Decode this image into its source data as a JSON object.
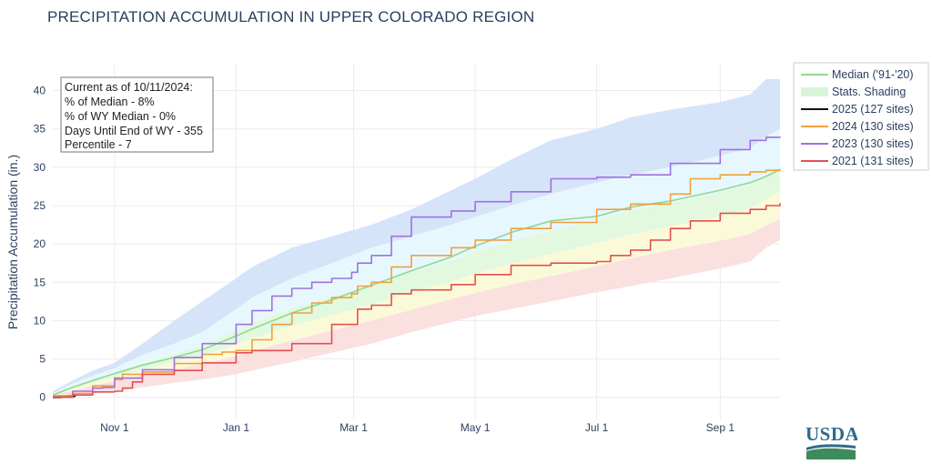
{
  "title": "PRECIPITATION ACCUMULATION IN UPPER COLORADO REGION",
  "logo_text": "USDA",
  "info_box": [
    "Current as of 10/11/2024:",
    "% of Median - 8%",
    "% of WY Median - 0%",
    "Days Until End of WY - 355",
    "Percentile - 7"
  ],
  "chart_data": {
    "type": "line",
    "title": "PRECIPITATION ACCUMULATION IN UPPER COLORADO REGION",
    "xlabel": "",
    "ylabel": "Precipitation Accumulation (in.)",
    "x_unit": "days since Oct 1",
    "xlim": [
      0,
      365
    ],
    "ylim": [
      -3,
      43.5
    ],
    "x_ticks": [
      {
        "label": "Nov 1",
        "day": 31
      },
      {
        "label": "Jan 1",
        "day": 92
      },
      {
        "label": "Mar 1",
        "day": 151
      },
      {
        "label": "May 1",
        "day": 212
      },
      {
        "label": "Jul 1",
        "day": 273
      },
      {
        "label": "Sep 1",
        "day": 335
      }
    ],
    "y_ticks": [
      0,
      5,
      10,
      15,
      20,
      25,
      30,
      35,
      40
    ],
    "grid": true,
    "legend_position": "top-right",
    "bands": [
      {
        "name": "max-90",
        "color": "#d6e4fa",
        "x": [
          0,
          10,
          20,
          31,
          45,
          61,
          75,
          92,
          100,
          120,
          140,
          160,
          180,
          200,
          212,
          230,
          250,
          273,
          290,
          310,
          335,
          350,
          358,
          365
        ],
        "lower": [
          0.5,
          1.8,
          2.8,
          3.8,
          5.5,
          7,
          8.5,
          11.5,
          13,
          15.5,
          17.5,
          19.5,
          21,
          22.5,
          23.5,
          25,
          26.5,
          28,
          29,
          30,
          31.5,
          32.5,
          34,
          35
        ],
        "upper": [
          0.8,
          2.2,
          3.5,
          4.5,
          7,
          10,
          12.5,
          15.5,
          17,
          19.5,
          21,
          22.5,
          24.5,
          27,
          28.5,
          31,
          33.5,
          35,
          36.5,
          37.5,
          38.5,
          39.5,
          41.5,
          41.5
        ]
      },
      {
        "name": "70-90",
        "color": "#e6f8fd",
        "x": [
          0,
          10,
          20,
          31,
          45,
          61,
          75,
          92,
          100,
          120,
          140,
          160,
          180,
          200,
          212,
          230,
          250,
          273,
          290,
          310,
          335,
          350,
          358,
          365
        ],
        "lower": [
          0.4,
          1.5,
          2.3,
          3.1,
          4.4,
          5.6,
          6.7,
          8.7,
          9.7,
          11.6,
          13.1,
          14.8,
          16.3,
          17.8,
          19,
          20.3,
          21.7,
          23.1,
          24.3,
          25.3,
          26.7,
          27.7,
          29,
          30
        ],
        "upper": [
          0.5,
          1.8,
          2.8,
          3.8,
          5.5,
          7,
          8.5,
          11.5,
          13,
          15.5,
          17.5,
          19.5,
          21,
          22.5,
          23.5,
          25,
          26.5,
          28,
          29,
          30,
          31.5,
          32.5,
          34,
          35
        ]
      },
      {
        "name": "50-70",
        "color": "#e2f8df",
        "x": [
          0,
          10,
          20,
          31,
          45,
          61,
          75,
          92,
          100,
          120,
          140,
          160,
          180,
          200,
          212,
          230,
          250,
          273,
          290,
          310,
          335,
          350,
          358,
          365
        ],
        "lower": [
          0.3,
          1.2,
          1.9,
          2.6,
          3.6,
          4.6,
          5.4,
          6.9,
          7.6,
          9.3,
          10.7,
          12.1,
          13.7,
          15.1,
          16.1,
          17.4,
          18.7,
          20.1,
          21.2,
          22.3,
          23.6,
          24.6,
          25.8,
          26.8
        ],
        "upper": [
          0.4,
          1.5,
          2.3,
          3.1,
          4.4,
          5.6,
          6.7,
          8.7,
          9.7,
          11.6,
          13.1,
          14.8,
          16.3,
          17.8,
          19,
          20.3,
          21.7,
          23.1,
          24.3,
          25.3,
          26.7,
          27.7,
          29,
          30
        ]
      },
      {
        "name": "30-50",
        "color": "#fbfad8",
        "x": [
          0,
          10,
          20,
          31,
          45,
          61,
          75,
          92,
          100,
          120,
          140,
          160,
          180,
          200,
          212,
          230,
          250,
          273,
          290,
          310,
          335,
          350,
          358,
          365
        ],
        "lower": [
          0.2,
          0.9,
          1.5,
          2.1,
          2.9,
          3.7,
          4.3,
          5.4,
          6,
          7.4,
          8.7,
          10,
          11.4,
          12.8,
          13.6,
          14.7,
          15.8,
          17.1,
          18.1,
          19.2,
          20.4,
          21.3,
          22.4,
          23.2
        ],
        "upper": [
          0.3,
          1.2,
          1.9,
          2.6,
          3.6,
          4.6,
          5.4,
          6.9,
          7.6,
          9.3,
          10.7,
          12.1,
          13.7,
          15.1,
          16.1,
          17.4,
          18.7,
          20.1,
          21.2,
          22.3,
          23.6,
          24.6,
          25.8,
          26.8
        ]
      },
      {
        "name": "min-30",
        "color": "#fbe0e0",
        "x": [
          0,
          10,
          20,
          31,
          45,
          61,
          75,
          92,
          100,
          120,
          140,
          160,
          180,
          200,
          212,
          230,
          250,
          273,
          290,
          310,
          335,
          350,
          358,
          365
        ],
        "lower": [
          0,
          0.2,
          0.5,
          0.8,
          1.3,
          1.9,
          2.3,
          3,
          3.5,
          4.6,
          5.8,
          7,
          8.5,
          9.8,
          10.6,
          11.5,
          12.5,
          13.7,
          14.5,
          15.5,
          16.8,
          17.7,
          19.5,
          20.5
        ],
        "upper": [
          0.2,
          0.9,
          1.5,
          2.1,
          2.9,
          3.7,
          4.3,
          5.4,
          6,
          7.4,
          8.7,
          10,
          11.4,
          12.8,
          13.6,
          14.7,
          15.8,
          17.1,
          18.1,
          19.2,
          20.4,
          21.3,
          22.4,
          23.2
        ]
      }
    ],
    "series": [
      {
        "name": "Median ('91-'20)",
        "color": "#90d990",
        "width": 1.6,
        "x": [
          0,
          10,
          20,
          31,
          45,
          61,
          75,
          92,
          100,
          120,
          140,
          160,
          180,
          200,
          212,
          230,
          250,
          273,
          290,
          310,
          335,
          350,
          358,
          365
        ],
        "values": [
          0.3,
          1.3,
          2.2,
          3.1,
          4.2,
          5.2,
          6.2,
          8,
          8.9,
          11,
          12.7,
          14.6,
          16.5,
          18.3,
          19.7,
          21.5,
          23,
          23.6,
          24.8,
          25.6,
          27,
          28,
          28.8,
          29.7
        ]
      },
      {
        "name": "2025 (127 sites)",
        "color": "#111111",
        "width": 2.2,
        "x": [
          0,
          4,
          8,
          11
        ],
        "values": [
          0,
          0.05,
          0.15,
          0.2
        ]
      },
      {
        "name": "2024 (130 sites)",
        "color": "#f0a040",
        "width": 1.6,
        "x": [
          0,
          10,
          20,
          31,
          35,
          45,
          61,
          75,
          85,
          92,
          100,
          110,
          120,
          130,
          140,
          150,
          153,
          160,
          170,
          180,
          200,
          212,
          230,
          250,
          273,
          290,
          310,
          320,
          335,
          350,
          358,
          365
        ],
        "values": [
          0.2,
          0.5,
          1.5,
          2.3,
          3,
          3.3,
          4.4,
          5.6,
          5.9,
          6.1,
          7.5,
          9.5,
          11,
          12.3,
          13,
          13.5,
          14.5,
          15,
          17,
          18.5,
          19.5,
          20.5,
          22,
          22.8,
          24.5,
          25.2,
          26.5,
          28.5,
          29,
          29.4,
          29.6,
          29.7
        ]
      },
      {
        "name": "2023 (130 sites)",
        "color": "#a070e0",
        "width": 1.6,
        "x": [
          0,
          10,
          20,
          25,
          31,
          45,
          61,
          75,
          92,
          100,
          110,
          120,
          130,
          140,
          150,
          153,
          160,
          170,
          180,
          200,
          212,
          230,
          250,
          273,
          290,
          310,
          335,
          350,
          358,
          365
        ],
        "values": [
          0,
          0.8,
          1.2,
          1.3,
          2.5,
          3.6,
          5.2,
          7,
          9.5,
          11.3,
          13.2,
          14.2,
          15,
          15.5,
          16.3,
          17.5,
          18.5,
          21,
          23.5,
          24.3,
          25.5,
          26.8,
          28.5,
          28.7,
          29,
          30.5,
          32.3,
          33.5,
          33.9,
          34
        ]
      },
      {
        "name": "2021 (131 sites)",
        "color": "#e35050",
        "width": 1.6,
        "x": [
          0,
          10,
          20,
          31,
          35,
          40,
          45,
          61,
          75,
          92,
          100,
          120,
          140,
          153,
          160,
          170,
          180,
          200,
          212,
          230,
          250,
          273,
          280,
          290,
          300,
          310,
          320,
          335,
          350,
          358,
          365
        ],
        "values": [
          0,
          0.3,
          0.7,
          0.8,
          1.2,
          2,
          3,
          3.5,
          4.5,
          5.8,
          6.1,
          7,
          9.5,
          11.5,
          12,
          13.5,
          14,
          14.7,
          16,
          17.2,
          17.5,
          17.7,
          18.5,
          19.2,
          20.5,
          22,
          23,
          24,
          24.5,
          25,
          25.3
        ]
      }
    ],
    "legend": [
      {
        "label": "Median ('91-'20)",
        "kind": "line",
        "color": "#90d990"
      },
      {
        "label": "Stats. Shading",
        "kind": "fill",
        "color": "#d8f5d8"
      },
      {
        "label": "2025 (127 sites)",
        "kind": "line",
        "color": "#111111"
      },
      {
        "label": "2024 (130 sites)",
        "kind": "line",
        "color": "#f0a040"
      },
      {
        "label": "2023 (130 sites)",
        "kind": "line",
        "color": "#a070e0"
      },
      {
        "label": "2021 (131 sites)",
        "kind": "line",
        "color": "#e35050"
      }
    ]
  }
}
